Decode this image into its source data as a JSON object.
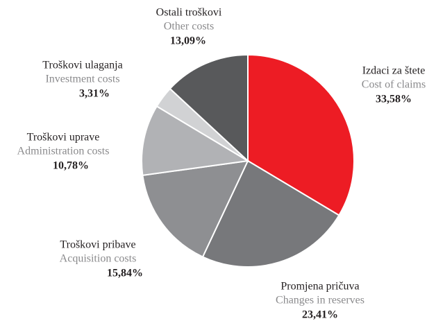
{
  "chart_data": {
    "type": "pie",
    "categories": [
      "Izdaci za štete",
      "Promjena pričuva",
      "Troškovi pribave",
      "Troškovi uprave",
      "Troškovi ulaganja",
      "Ostali troškovi"
    ],
    "categories_en": [
      "Cost of claims",
      "Changes in reserves",
      "Acquisition costs",
      "Administration costs",
      "Investment costs",
      "Other costs"
    ],
    "values": [
      33.58,
      23.41,
      15.84,
      10.78,
      3.31,
      13.09
    ],
    "value_labels": [
      "33,58%",
      "23,41%",
      "15,84%",
      "10,78%",
      "3,31%",
      "13,09%"
    ],
    "colors": [
      "#ed1c24",
      "#77787b",
      "#8e8f92",
      "#b1b2b5",
      "#d1d2d4",
      "#58595b"
    ]
  }
}
